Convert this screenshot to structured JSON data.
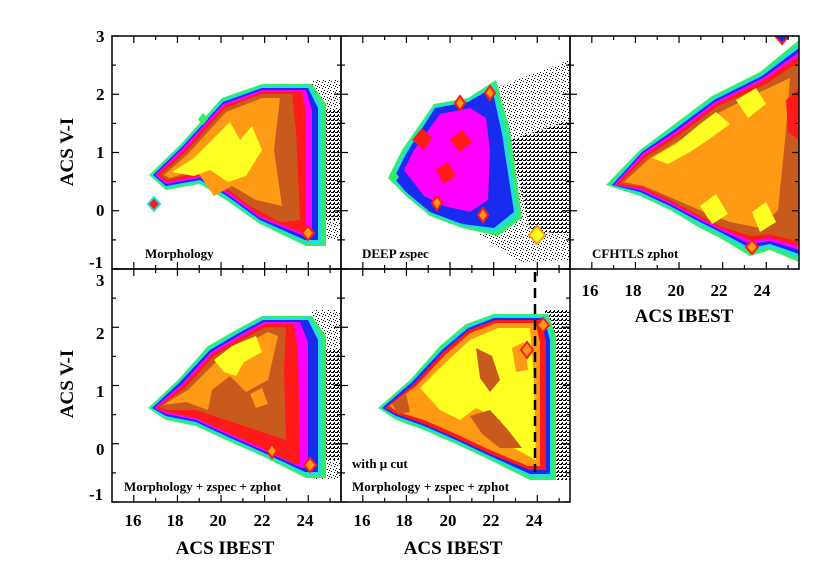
{
  "colors": {
    "white": "#ffffff",
    "black": "#000000",
    "green": "#33ee66",
    "cyan": "#22dddd",
    "blue": "#1a2bf0",
    "magenta": "#ff00ff",
    "red": "#ff1a1a",
    "brown": "#c85a1e",
    "orange": "#ff9a14",
    "yellow": "#ffff22"
  },
  "chart_data": [
    {
      "type": "heatmap",
      "panel": "top-left",
      "label": "Morphology",
      "xlim": [
        15,
        25.5
      ],
      "ylim": [
        -1,
        3
      ],
      "ylabel": "ACS V-I",
      "yticks": [
        "-1",
        "0",
        "1",
        "2",
        "3"
      ],
      "density_levels": [
        "green",
        "cyan",
        "blue",
        "magenta",
        "red",
        "brown",
        "orange",
        "yellow"
      ],
      "outliers_beyond_mag": 24.3
    },
    {
      "type": "heatmap",
      "panel": "top-middle",
      "label": "DEEP zspec",
      "xlim": [
        15,
        25.5
      ],
      "ylim": [
        -1,
        3
      ],
      "density_levels": [
        "green",
        "cyan",
        "blue",
        "magenta",
        "red",
        "brown",
        "orange",
        "yellow"
      ],
      "outliers_beyond_mag": 22.5
    },
    {
      "type": "heatmap",
      "panel": "top-right",
      "label": "CFHTLS zphot",
      "xlim": [
        15,
        25.5
      ],
      "ylim": [
        -1,
        3
      ],
      "xlabel": "ACS IBEST",
      "xticks": [
        "16",
        "18",
        "20",
        "22",
        "24"
      ],
      "density_levels": [
        "green",
        "cyan",
        "blue",
        "magenta",
        "red",
        "brown",
        "orange",
        "yellow"
      ]
    },
    {
      "type": "heatmap",
      "panel": "bottom-left",
      "label": "Morphology + zspec + zphot",
      "xlim": [
        15,
        25.5
      ],
      "ylim": [
        -1,
        3
      ],
      "ylabel": "ACS V-I",
      "yticks": [
        "-1",
        "0",
        "1",
        "2",
        "3"
      ],
      "xlabel": "ACS IBEST",
      "xticks": [
        "16",
        "18",
        "20",
        "22",
        "24"
      ],
      "density_levels": [
        "green",
        "cyan",
        "blue",
        "magenta",
        "red",
        "brown",
        "orange",
        "yellow"
      ],
      "outliers_beyond_mag": 24.3
    },
    {
      "type": "heatmap",
      "panel": "bottom-middle",
      "label": "Morphology + zspec + zphot",
      "label2": "with μ cut",
      "xlim": [
        15,
        25.5
      ],
      "ylim": [
        -1,
        3
      ],
      "xlabel": "ACS IBEST",
      "xticks": [
        "16",
        "18",
        "20",
        "22",
        "24"
      ],
      "density_levels": [
        "green",
        "cyan",
        "blue",
        "magenta",
        "red",
        "brown",
        "orange",
        "yellow"
      ],
      "cut_line_mag": 24,
      "outliers_beyond_mag": 24.3
    }
  ]
}
